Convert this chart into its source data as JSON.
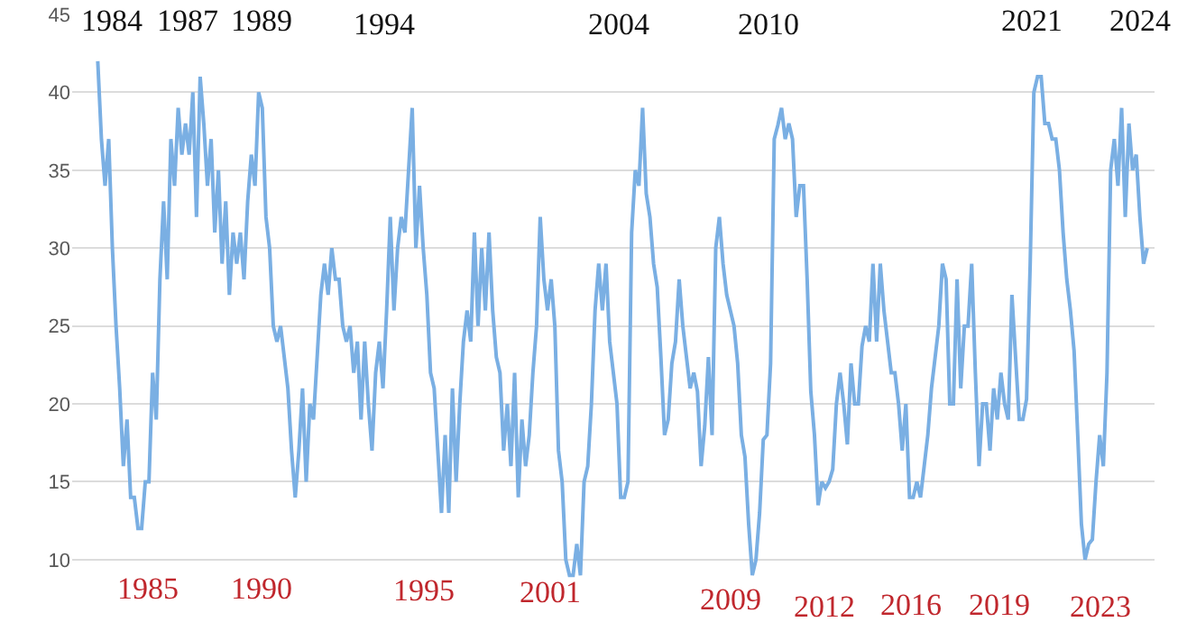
{
  "chart_data": {
    "type": "line",
    "categories": [
      null,
      null,
      null,
      null,
      null,
      null,
      null,
      null,
      null,
      null,
      null,
      null,
      null,
      null,
      null,
      null,
      null,
      null,
      null,
      null,
      null,
      null,
      null,
      null,
      null,
      null,
      null,
      null,
      null,
      null,
      null,
      null,
      null,
      null,
      null,
      null,
      null,
      null,
      null,
      null,
      null,
      null,
      null,
      null,
      null,
      null,
      null,
      null,
      null,
      null,
      null,
      null,
      null,
      null,
      null,
      null,
      null,
      null,
      null,
      null,
      null,
      null,
      null,
      null,
      null,
      null,
      null,
      null,
      null,
      null,
      null,
      null,
      null,
      null,
      null,
      null,
      null,
      null,
      null,
      null,
      null,
      null,
      null,
      null,
      null,
      null,
      null,
      null,
      null,
      null,
      null,
      null,
      null,
      null,
      null,
      null,
      null,
      null,
      null,
      null,
      null,
      null,
      null,
      null,
      null,
      null,
      null,
      null,
      null,
      null,
      null,
      null,
      null,
      null,
      null,
      null,
      null,
      null,
      null,
      null,
      null,
      null,
      null,
      null,
      null,
      null,
      null,
      null,
      null,
      null,
      null,
      null,
      null,
      null,
      null,
      null,
      null,
      null,
      null,
      null,
      null,
      null,
      null,
      null,
      null,
      null,
      null,
      null,
      null,
      null,
      null,
      null,
      null,
      null,
      null,
      null,
      null,
      null,
      null,
      null,
      null,
      null,
      null,
      null,
      null,
      null,
      null,
      null,
      null,
      null,
      null,
      null,
      null,
      null,
      null,
      null,
      null,
      null,
      null,
      null,
      null,
      null,
      null,
      null,
      null,
      null,
      null,
      null,
      null,
      null,
      null,
      null,
      null,
      null,
      null,
      null,
      null,
      null,
      null,
      null,
      null,
      null,
      null,
      null,
      null,
      null,
      null,
      null,
      null,
      null,
      null,
      null,
      null,
      null,
      null,
      null,
      null,
      null,
      null,
      null,
      null,
      null,
      null,
      null,
      null,
      null,
      null,
      null,
      null,
      null,
      null,
      null,
      null,
      null,
      null,
      null,
      null,
      null,
      null,
      null,
      null,
      null,
      null,
      null,
      null,
      null,
      null,
      null,
      null,
      null,
      null,
      null,
      null,
      null,
      null,
      null,
      null,
      null,
      null,
      null,
      null,
      null,
      null,
      null,
      null,
      null,
      null,
      null,
      null,
      null,
      null,
      null,
      null,
      null,
      null,
      null,
      null,
      null,
      null,
      null,
      null,
      null,
      null,
      null,
      null,
      null,
      null,
      null
    ],
    "series": [
      {
        "color": "#7aafe3",
        "values": [
          42,
          37,
          34,
          37,
          30,
          25,
          21,
          16,
          19,
          14,
          14,
          12,
          12,
          15,
          15,
          22,
          19,
          28,
          33,
          28,
          37,
          34,
          39,
          36,
          38,
          36,
          40,
          32,
          41,
          38,
          34,
          37,
          31,
          35,
          29,
          33,
          27,
          31,
          29,
          31,
          28,
          33,
          36,
          34,
          40,
          39,
          32,
          30,
          25,
          24,
          25,
          23,
          21,
          17,
          14,
          17,
          21,
          15,
          20,
          19,
          23,
          27,
          29,
          27,
          30,
          28,
          28,
          25,
          24,
          25,
          22,
          24,
          19,
          24,
          20,
          17,
          22,
          24,
          21,
          26,
          32,
          26,
          30,
          32,
          31,
          35,
          39,
          30,
          34,
          30,
          27,
          22,
          21,
          17,
          13,
          18,
          13,
          21,
          15,
          20,
          24,
          26,
          24,
          31,
          25,
          30,
          26,
          31,
          26,
          23,
          22,
          17,
          20,
          16,
          22,
          14,
          19,
          16,
          18,
          22,
          25,
          32,
          28,
          26,
          28,
          25,
          17,
          15,
          10,
          9,
          9,
          11,
          9,
          15,
          16,
          20,
          26,
          29,
          26,
          29,
          24,
          22,
          20,
          14,
          14,
          15,
          31,
          35,
          34,
          39,
          33.5,
          32,
          29,
          27.5,
          23,
          18,
          19,
          22.6,
          24,
          28,
          25,
          23,
          21,
          22,
          20.8,
          16,
          18.6,
          23,
          18,
          30,
          32,
          29,
          27,
          26,
          25,
          22.6,
          18,
          16.6,
          12.3,
          9,
          10,
          13,
          17.7,
          18,
          22.6,
          37,
          37.9,
          39,
          37,
          38,
          37,
          32,
          34,
          34,
          28,
          20.8,
          18,
          13.5,
          15,
          14.6,
          15,
          15.8,
          20,
          22,
          20,
          17.4,
          22.6,
          20,
          20,
          23.7,
          25,
          24,
          29,
          24,
          29,
          26,
          24,
          22,
          22,
          20,
          17,
          20,
          14,
          14,
          15,
          14,
          16,
          18,
          21,
          23,
          25,
          29,
          28,
          20,
          20,
          28,
          21,
          25,
          25,
          29,
          22,
          16,
          20,
          20,
          17,
          21,
          19,
          22,
          20,
          19,
          27,
          23,
          19,
          19,
          20.3,
          29,
          40,
          41,
          41,
          38,
          38,
          37,
          37,
          35,
          31,
          28,
          26,
          23.4,
          18,
          12.3,
          10,
          11,
          11.3,
          15,
          18,
          16,
          22,
          35,
          37,
          34,
          39,
          32,
          38,
          35,
          36,
          32,
          29,
          30
        ]
      }
    ],
    "ylim": [
      6,
      45
    ],
    "yticks": [
      10,
      15,
      20,
      25,
      30,
      35,
      40,
      45
    ],
    "grid": "y",
    "tick_labels": "y",
    "annotations": [
      "1984",
      "1987",
      "1989",
      "1994",
      "2004",
      "2010",
      "2021",
      "2024",
      "1985",
      "1990",
      "1995",
      "2001",
      "2009",
      "2012",
      "2016",
      "2019",
      "2023"
    ]
  }
}
